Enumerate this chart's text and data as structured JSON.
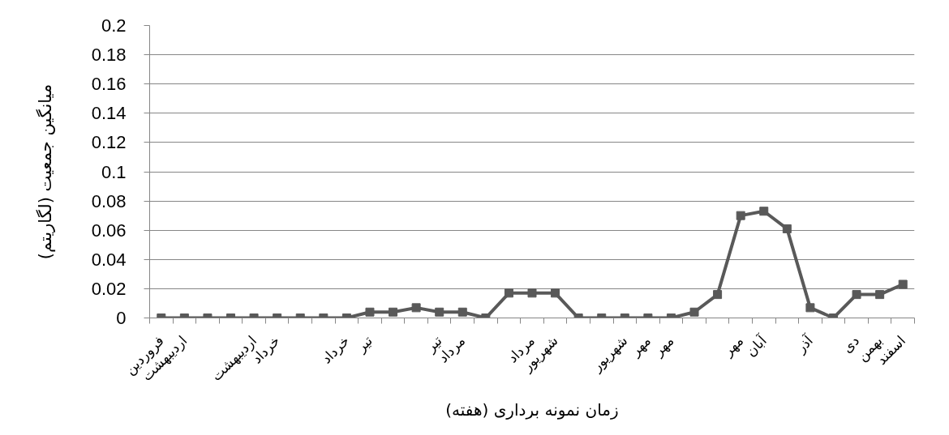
{
  "chart_data": {
    "type": "line",
    "xlabel": "زمان نمونه برداری (هفته)",
    "ylabel": "میانگین جمعیت (لگاریتم)",
    "categories": [
      "فروردین",
      "اردیبهشت",
      null,
      null,
      "اردیبهشت",
      "خرداد",
      null,
      null,
      "خرداد",
      "تیر",
      null,
      null,
      "تیر",
      "مرداد",
      null,
      null,
      "مرداد",
      "شهریور",
      null,
      null,
      "شهریور",
      "مهر",
      "مهر",
      null,
      null,
      "مهر",
      "آبان",
      null,
      "آذر",
      null,
      "دی",
      "بهمن",
      "اسفند"
    ],
    "series": [
      {
        "color": "#595959",
        "values": [
          0,
          0,
          0,
          0,
          0,
          0,
          0,
          0,
          0,
          0.004,
          0.004,
          0.007,
          0.004,
          0.004,
          0,
          0.017,
          0.017,
          0.017,
          0,
          0,
          0,
          0,
          0,
          0.004,
          0.016,
          0.07,
          0.073,
          0.061,
          0.007,
          0,
          0.016,
          0.016,
          0.023
        ]
      }
    ],
    "ylim": [
      0,
      0.2
    ],
    "yticks": [
      0,
      0.02,
      0.04,
      0.06,
      0.08,
      0.1,
      0.12,
      0.14,
      0.16,
      0.18,
      0.2
    ],
    "grid": "y",
    "marker": "square",
    "line_style": "solid"
  }
}
